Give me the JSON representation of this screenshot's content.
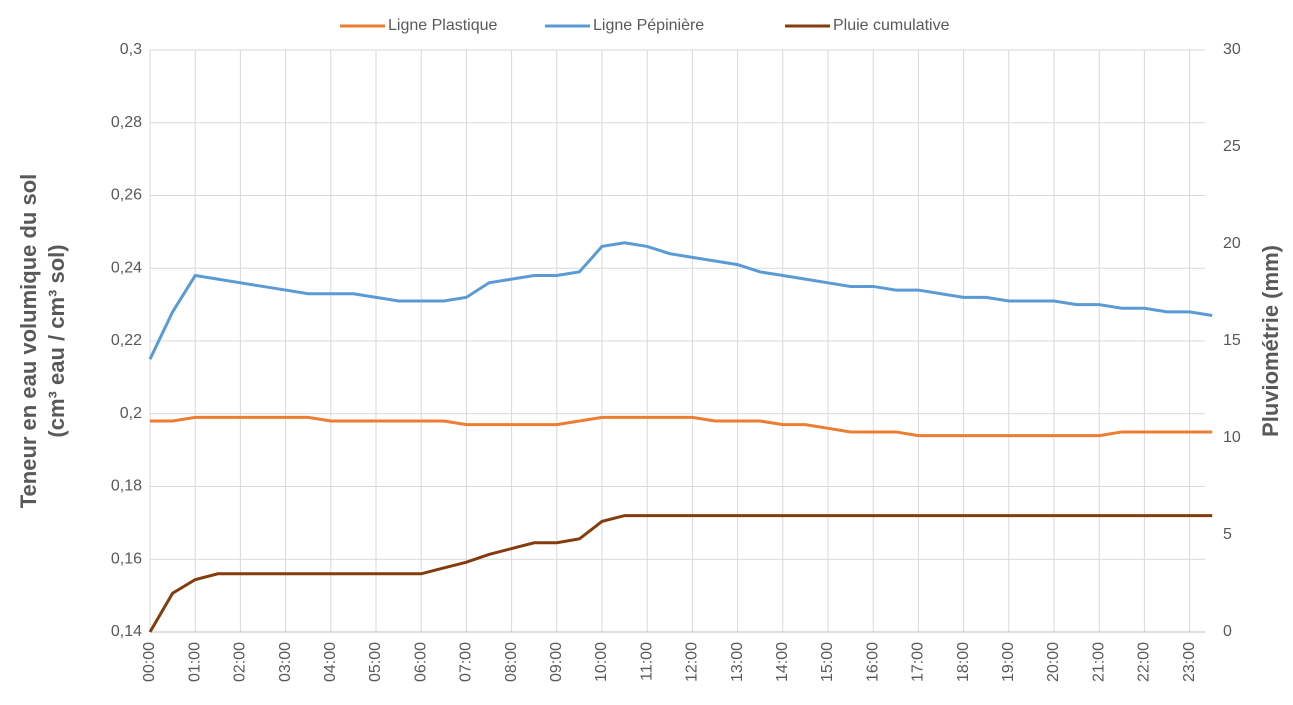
{
  "chart_data": {
    "type": "line",
    "categories": [
      "00:00",
      null,
      "01:00",
      null,
      "02:00",
      null,
      "03:00",
      null,
      "04:00",
      null,
      "05:00",
      null,
      "06:00",
      null,
      "07:00",
      null,
      "08:00",
      null,
      "09:00",
      null,
      "10:00",
      null,
      "11:00",
      null,
      "12:00",
      null,
      "13:00",
      null,
      "14:00",
      null,
      "15:00",
      null,
      "16:00",
      null,
      "17:00",
      null,
      "18:00",
      null,
      "19:00",
      null,
      "20:00",
      null,
      "21:00",
      null,
      "22:00",
      null,
      "23:00",
      null
    ],
    "series": [
      {
        "name": "Ligne Plastique",
        "color": "#ed7d31",
        "values": [
          0.198,
          0.198,
          0.199,
          0.199,
          0.199,
          0.199,
          0.199,
          0.199,
          0.198,
          0.198,
          0.198,
          0.198,
          0.198,
          0.198,
          0.197,
          0.197,
          0.197,
          0.197,
          0.197,
          0.198,
          0.199,
          0.199,
          0.199,
          0.199,
          0.199,
          0.198,
          0.198,
          0.198,
          0.197,
          0.197,
          0.196,
          0.195,
          0.195,
          0.195,
          0.194,
          0.194,
          0.194,
          0.194,
          0.194,
          0.194,
          0.194,
          0.194,
          0.194,
          0.195,
          0.195,
          0.195,
          0.195,
          0.195
        ]
      },
      {
        "name": "Ligne Pépinière",
        "color": "#5b9bd5",
        "values": [
          0.215,
          0.228,
          0.238,
          0.237,
          0.236,
          0.235,
          0.234,
          0.233,
          0.233,
          0.233,
          0.232,
          0.231,
          0.231,
          0.231,
          0.232,
          0.236,
          0.237,
          0.238,
          0.238,
          0.239,
          0.246,
          0.247,
          0.246,
          0.244,
          0.243,
          0.242,
          0.241,
          0.239,
          0.238,
          0.237,
          0.236,
          0.235,
          0.235,
          0.234,
          0.234,
          0.233,
          0.232,
          0.232,
          0.231,
          0.231,
          0.231,
          0.23,
          0.23,
          0.229,
          0.229,
          0.228,
          0.228,
          0.227
        ]
      },
      {
        "name": "Pluie cumulative",
        "color": "#843c0c",
        "axis": "y2",
        "values": [
          0,
          2,
          2.7,
          3,
          3,
          3,
          3,
          3,
          3,
          3,
          3,
          3,
          3,
          3.3,
          3.6,
          4,
          4.3,
          4.6,
          4.6,
          4.8,
          5.7,
          6,
          6,
          6,
          6,
          6,
          6,
          6,
          6,
          6,
          6,
          6,
          6,
          6,
          6,
          6,
          6,
          6,
          6,
          6,
          6,
          6,
          6,
          6,
          6,
          6,
          6,
          6
        ]
      }
    ],
    "ylabel": [
      "Teneur en eau volumique  du sol",
      "(cm³ eau / cm³ sol)"
    ],
    "y2label": "Pluviométrie (mm)",
    "ylim": [
      0.14,
      0.3
    ],
    "yticks": [
      {
        "value": 0.14,
        "label": "0,14"
      },
      {
        "value": 0.16,
        "label": "0,16"
      },
      {
        "value": 0.18,
        "label": "0,18"
      },
      {
        "value": 0.2,
        "label": "0,2"
      },
      {
        "value": 0.22,
        "label": "0,22"
      },
      {
        "value": 0.24,
        "label": "0,24"
      },
      {
        "value": 0.26,
        "label": "0,26"
      },
      {
        "value": 0.28,
        "label": "0,28"
      },
      {
        "value": 0.3,
        "label": "0,3"
      }
    ],
    "y2lim": [
      0,
      30
    ],
    "y2ticks": [
      0,
      5,
      10,
      15,
      20,
      25,
      30
    ],
    "grid": true,
    "legend": "top"
  }
}
